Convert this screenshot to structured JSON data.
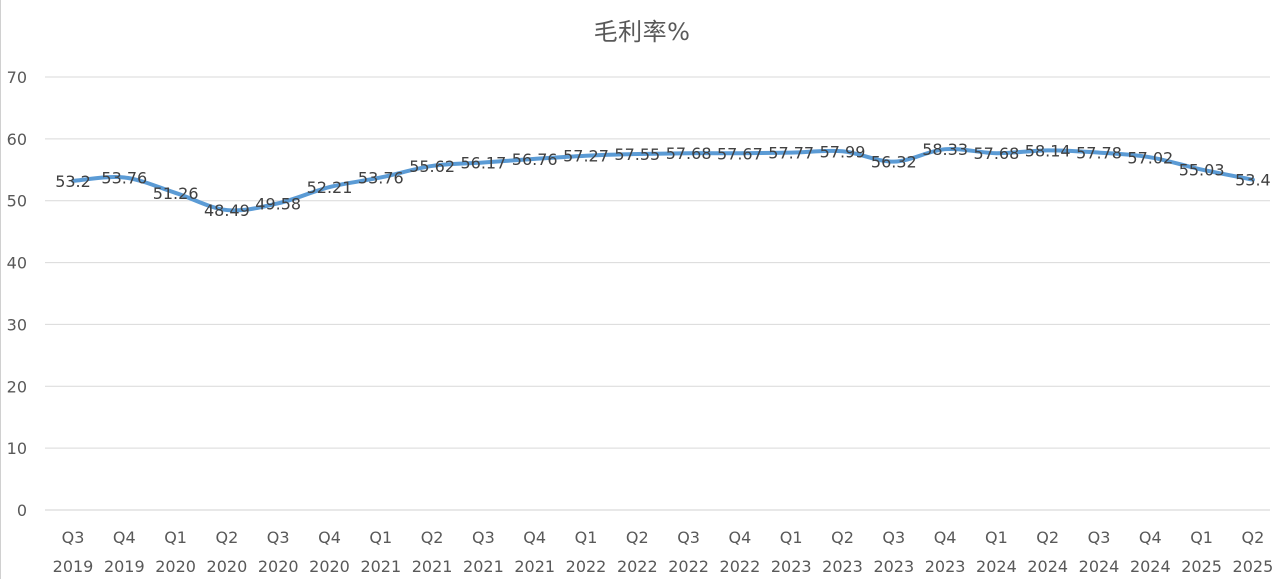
{
  "chart_data": {
    "type": "line",
    "title": "毛利率%",
    "categories": [
      [
        "Q3",
        "2019"
      ],
      [
        "Q4",
        "2019"
      ],
      [
        "Q1",
        "2020"
      ],
      [
        "Q2",
        "2020"
      ],
      [
        "Q3",
        "2020"
      ],
      [
        "Q4",
        "2020"
      ],
      [
        "Q1",
        "2021"
      ],
      [
        "Q2",
        "2021"
      ],
      [
        "Q3",
        "2021"
      ],
      [
        "Q4",
        "2021"
      ],
      [
        "Q1",
        "2022"
      ],
      [
        "Q2",
        "2022"
      ],
      [
        "Q3",
        "2022"
      ],
      [
        "Q4",
        "2022"
      ],
      [
        "Q1",
        "2023"
      ],
      [
        "Q2",
        "2023"
      ],
      [
        "Q3",
        "2023"
      ],
      [
        "Q4",
        "2023"
      ],
      [
        "Q1",
        "2024"
      ],
      [
        "Q2",
        "2024"
      ],
      [
        "Q3",
        "2024"
      ],
      [
        "Q4",
        "2024"
      ],
      [
        "Q1",
        "2025"
      ],
      [
        "Q2",
        "2025"
      ]
    ],
    "series": [
      {
        "values": [
          53.2,
          53.76,
          51.26,
          48.49,
          49.58,
          52.21,
          53.76,
          55.62,
          56.17,
          56.76,
          57.27,
          57.55,
          57.68,
          57.67,
          57.77,
          57.99,
          56.32,
          58.33,
          57.68,
          58.14,
          57.78,
          57.02,
          55.03,
          53.4
        ]
      }
    ],
    "ylim": [
      0,
      70
    ],
    "yticks": [
      0,
      10,
      20,
      30,
      40,
      50,
      60,
      70
    ],
    "grid": true,
    "line_color": "#5b9bd5",
    "smooth": true,
    "data_labels": true
  }
}
